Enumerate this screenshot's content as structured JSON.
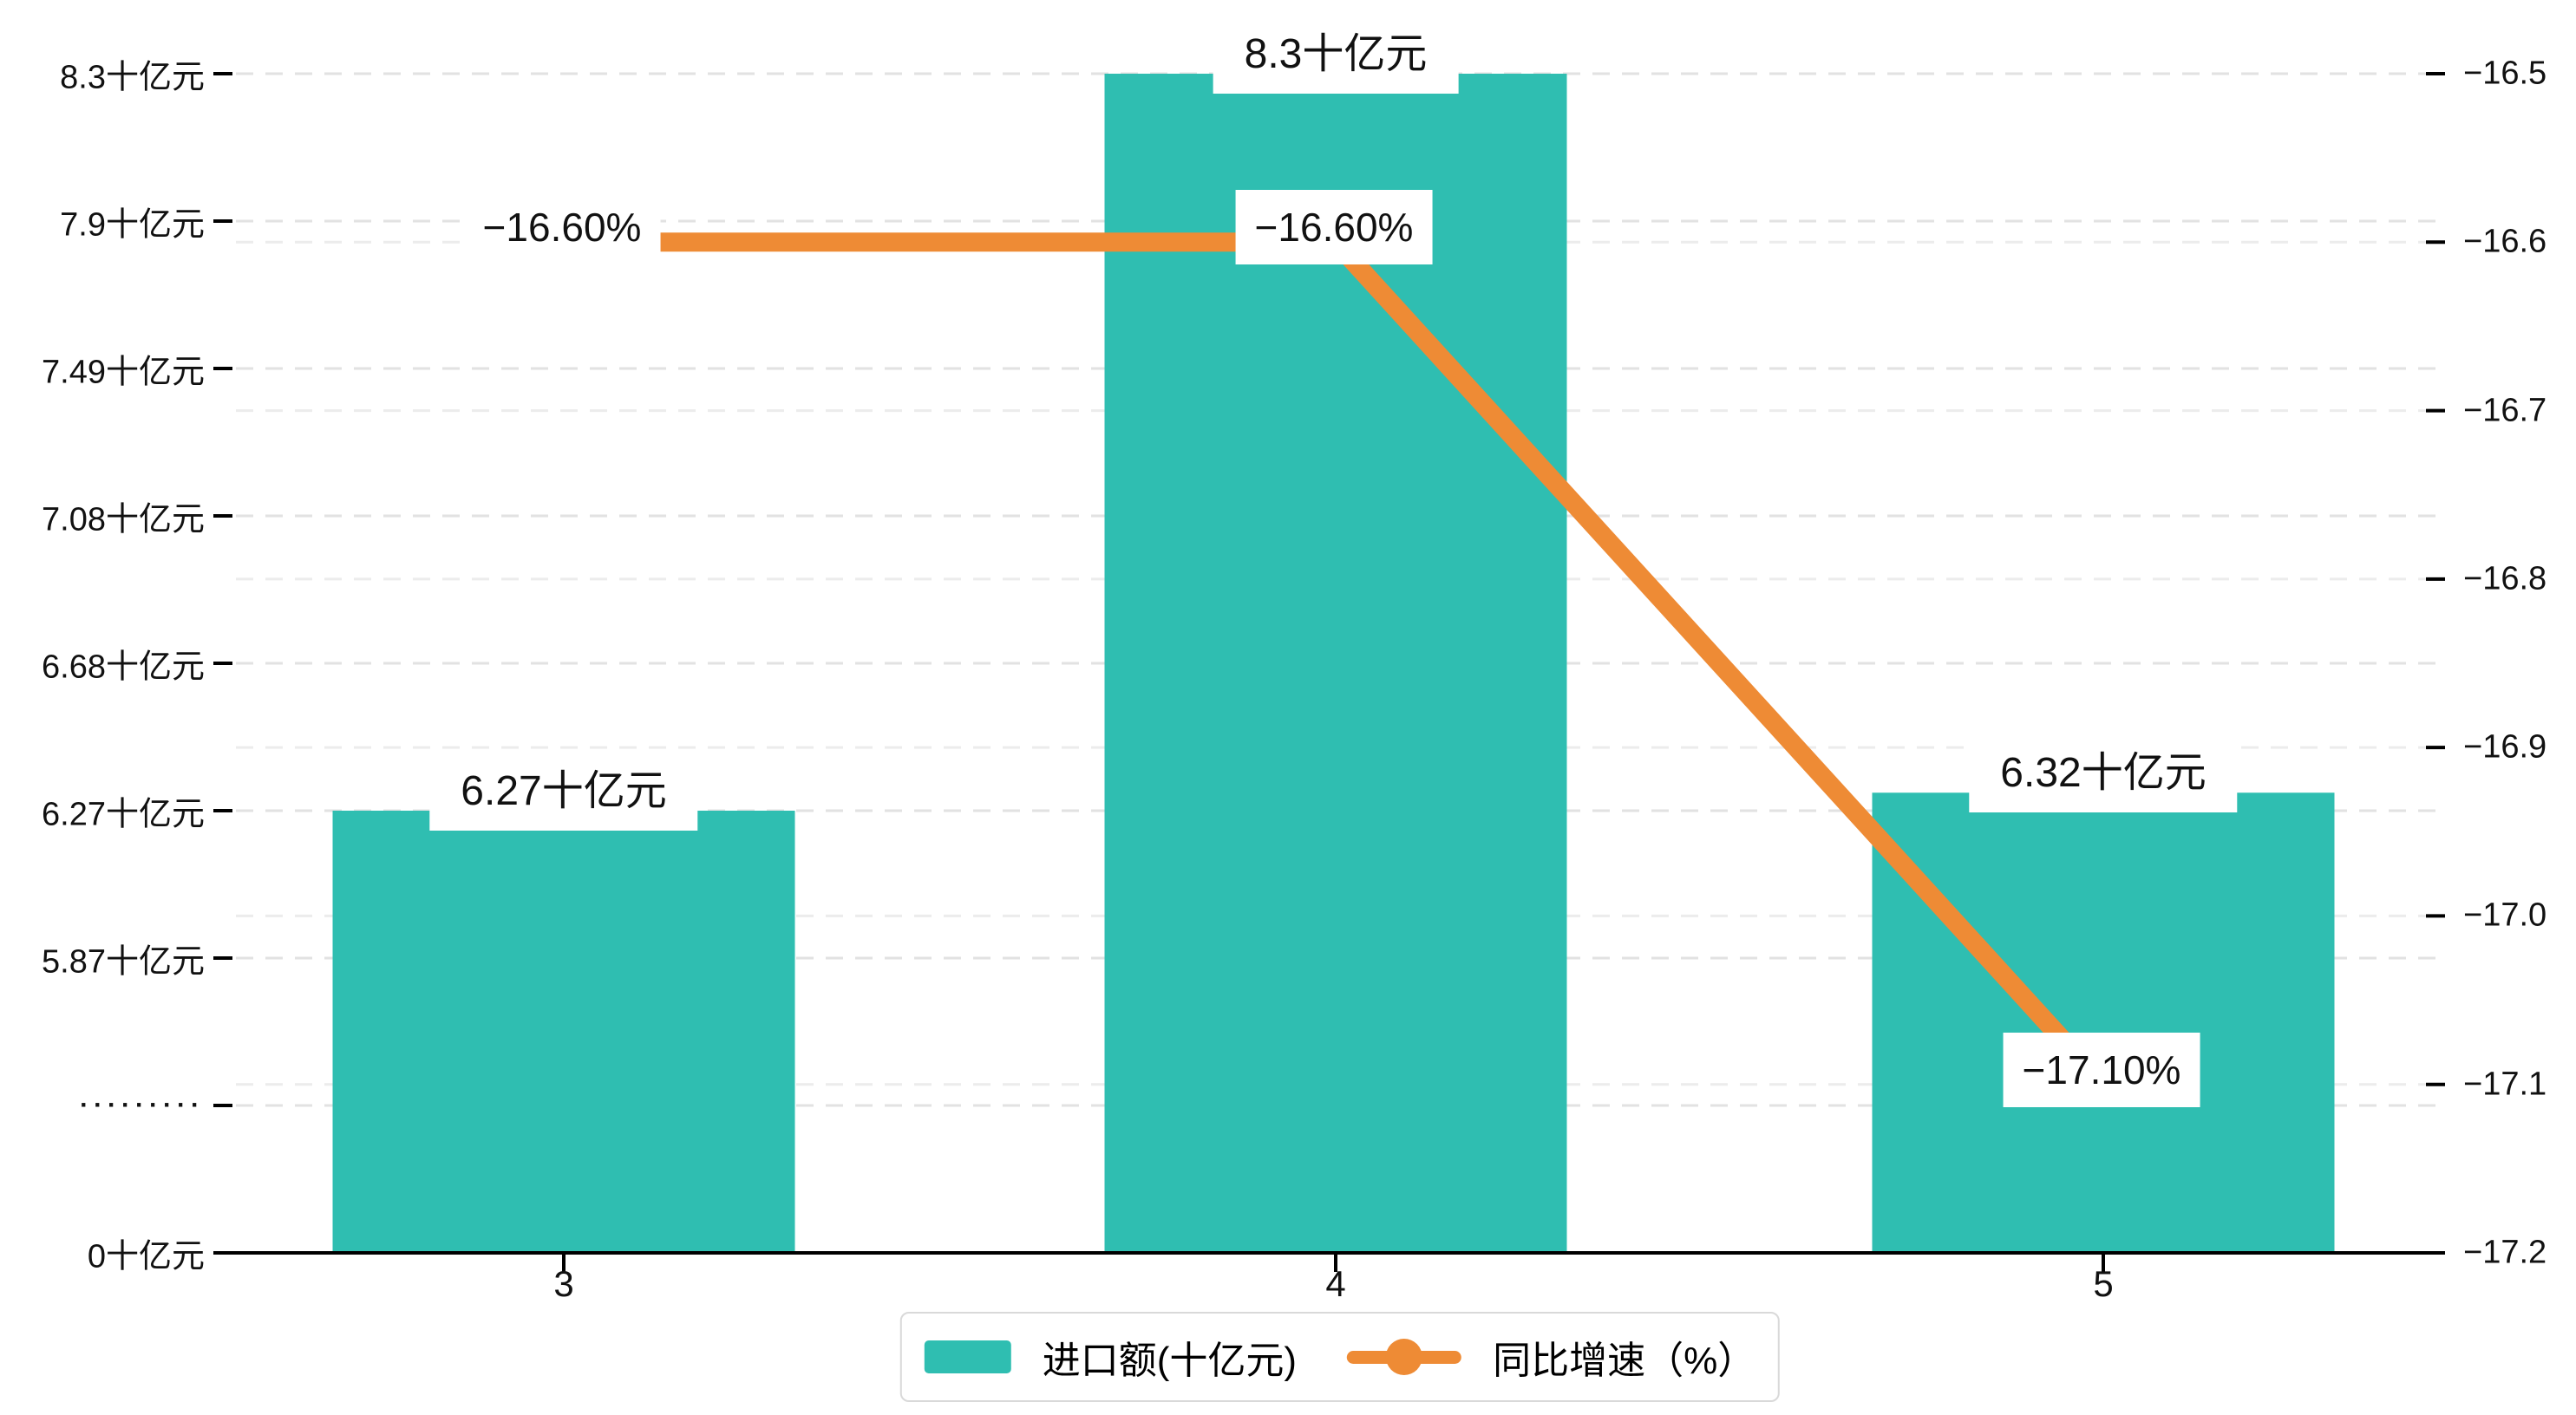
{
  "chart_data": {
    "type": "combo-bar-line",
    "categories": [
      "3",
      "4",
      "5"
    ],
    "series": [
      {
        "name": "进口额(十亿元)",
        "type": "bar",
        "values": [
          6.27,
          8.3,
          6.32
        ],
        "labels": [
          "6.27十亿元",
          "8.3十亿元",
          "6.32十亿元"
        ],
        "color": "#2FBEB1",
        "axis": "left"
      },
      {
        "name": "同比增速（%）",
        "type": "line",
        "values": [
          -16.6,
          -16.6,
          -17.1
        ],
        "labels": [
          "−16.60%",
          "−16.60%",
          "−17.10%"
        ],
        "color": "#EE8B35",
        "axis": "right"
      }
    ],
    "left_axis": {
      "tick_labels": [
        "8.3十亿元",
        "7.9十亿元",
        "7.49十亿元",
        "7.08十亿元",
        "6.68十亿元",
        "6.27十亿元",
        "5.87十亿元",
        "·········",
        "0十亿元"
      ],
      "tick_values": [
        8.3,
        7.9,
        7.49,
        7.08,
        6.68,
        6.27,
        5.87,
        null,
        0
      ],
      "broken_axis": true
    },
    "right_axis": {
      "tick_labels": [
        "−16.5",
        "−16.6",
        "−16.7",
        "−16.8",
        "−16.9",
        "−17.0",
        "−17.1",
        "−17.2"
      ],
      "max": -16.5,
      "min": -17.2
    },
    "legend": [
      "进口额(十亿元)",
      "同比增速（%）"
    ],
    "legend_position": "bottom",
    "grid": "dashed-horizontal",
    "colors": {
      "bar": "#2FBEB1",
      "line": "#EE8B35",
      "grid_major": "#e2e2e2",
      "grid_minor": "#ececec",
      "axis_line": "#000000",
      "text": "#111111",
      "legend_border": "#d9d9d9",
      "background": "#ffffff"
    }
  }
}
